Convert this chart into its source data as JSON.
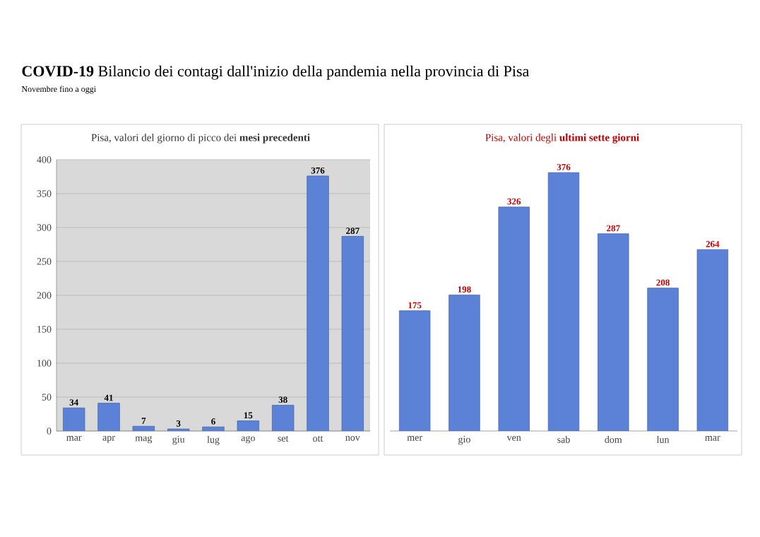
{
  "chart_data": [
    {
      "type": "bar",
      "title": "**COVID-19** Bilancio dei contagi dall'inizio della pandemia nella provincia di Pisa",
      "subtitle": "Novembre fino a oggi",
      "annotations": [
        "Pisa, valori del giorno di picco dei **mesi precedenti**"
      ],
      "categories": [
        "mar",
        "apr",
        "mag",
        "giu",
        "lug",
        "ago",
        "set",
        "ott",
        "nov"
      ],
      "values": [
        34,
        41,
        7,
        3,
        6,
        15,
        38,
        376,
        287
      ],
      "color": "#5b82d6",
      "ylim": [
        0,
        400
      ],
      "yticks": [
        0,
        50,
        100,
        150,
        200,
        250,
        300,
        350,
        400
      ],
      "grid": "y",
      "data_labels": true
    },
    {
      "type": "bar",
      "title": "Pisa, valori degli **ultimi sette giorni**",
      "categories": [
        "mer",
        "gio",
        "ven",
        "sab",
        "dom",
        "lun",
        "mar"
      ],
      "values": [
        175,
        198,
        326,
        376,
        287,
        208,
        264
      ],
      "color": "#5b82d6",
      "tick_labels": "x",
      "data_labels": true
    }
  ]
}
